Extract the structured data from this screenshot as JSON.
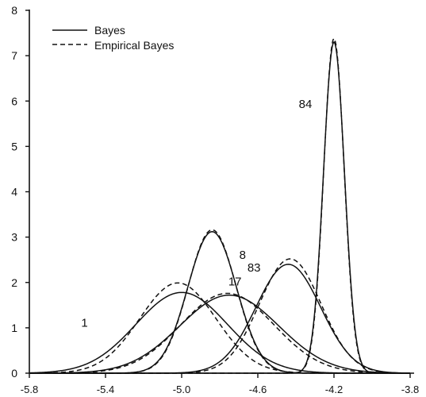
{
  "chart_data": {
    "type": "line",
    "title": "",
    "xlabel": "",
    "ylabel": "",
    "xlim": [
      -5.8,
      -3.8
    ],
    "ylim": [
      0,
      8
    ],
    "x_ticks": [
      -5.8,
      -5.4,
      -5.0,
      -4.6,
      -4.2,
      -3.8
    ],
    "x_tick_labels": [
      "-5.8",
      "-5.4",
      "-5.0",
      "-4.6",
      "-4.2",
      "-3.8"
    ],
    "y_ticks": [
      0,
      1,
      2,
      3,
      4,
      5,
      6,
      7,
      8
    ],
    "y_tick_labels": [
      "0",
      "1",
      "2",
      "3",
      "4",
      "5",
      "6",
      "7",
      "8"
    ],
    "grid": false,
    "legend_position": "top-left",
    "legend": [
      {
        "label": "Bayes",
        "style": "solid"
      },
      {
        "label": "Empirical Bayes",
        "style": "dashed"
      }
    ],
    "series": [
      {
        "name": "Bayes",
        "curve": "1",
        "style": "solid",
        "mean": -5.0,
        "sd": 0.24,
        "peak": 1.78
      },
      {
        "name": "Empirical Bayes",
        "curve": "1",
        "style": "dashed",
        "mean": -5.02,
        "sd": 0.2,
        "peak": 1.99
      },
      {
        "name": "Bayes",
        "curve": "17",
        "style": "solid",
        "mean": -4.75,
        "sd": 0.26,
        "peak": 1.72
      },
      {
        "name": "Empirical Bayes",
        "curve": "17",
        "style": "dashed",
        "mean": -4.76,
        "sd": 0.245,
        "peak": 1.76
      },
      {
        "name": "Bayes",
        "curve": "8",
        "style": "solid",
        "mean": -4.84,
        "sd": 0.128,
        "peak": 3.12
      },
      {
        "name": "Empirical Bayes",
        "curve": "8",
        "style": "dashed",
        "mean": -4.84,
        "sd": 0.126,
        "peak": 3.16
      },
      {
        "name": "Bayes",
        "curve": "83",
        "style": "solid",
        "mean": -4.44,
        "sd": 0.17,
        "peak": 2.4
      },
      {
        "name": "Empirical Bayes",
        "curve": "83",
        "style": "dashed",
        "mean": -4.43,
        "sd": 0.162,
        "peak": 2.52
      },
      {
        "name": "Bayes",
        "curve": "84",
        "style": "solid",
        "mean": -4.2,
        "sd": 0.055,
        "peak": 7.3
      },
      {
        "name": "Empirical Bayes",
        "curve": "84",
        "style": "dashed",
        "mean": -4.2,
        "sd": 0.054,
        "peak": 7.38
      }
    ],
    "annotations": [
      {
        "text": "1",
        "x": -5.51,
        "y": 1.02
      },
      {
        "text": "17",
        "x": -4.72,
        "y": 1.93
      },
      {
        "text": "8",
        "x": -4.68,
        "y": 2.52
      },
      {
        "text": "83",
        "x": -4.62,
        "y": 2.24
      },
      {
        "text": "84",
        "x": -4.35,
        "y": 5.85
      }
    ]
  }
}
